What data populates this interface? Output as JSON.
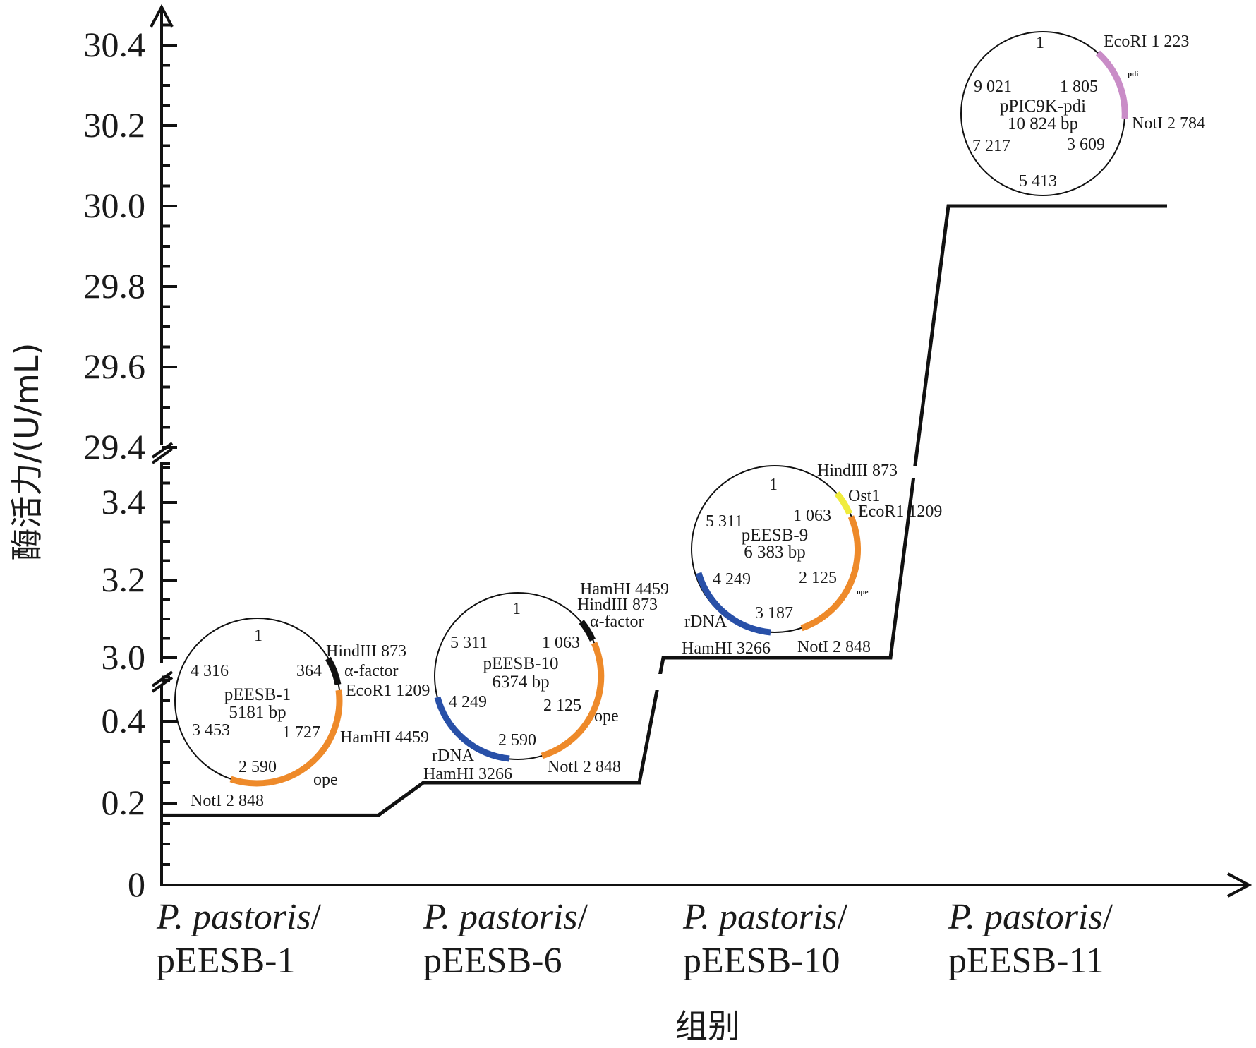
{
  "chart_data": {
    "type": "step-line",
    "title": "",
    "xlabel": "组别",
    "ylabel": "酶活力/(U/mL)",
    "categories": [
      {
        "italic": "P. pastoris",
        "slash": "/",
        "name": "pEESB-1"
      },
      {
        "italic": "P. pastoris",
        "slash": "/",
        "name": "pEESB-6"
      },
      {
        "italic": "P. pastoris",
        "slash": "/",
        "name": "pEESB-10"
      },
      {
        "italic": "P. pastoris",
        "slash": "/",
        "name": "pEESB-11"
      }
    ],
    "values": [
      0.17,
      0.25,
      3.0,
      30.0
    ],
    "y_axis": {
      "broken": true,
      "segments": [
        {
          "range": [
            0,
            0.5
          ],
          "ticks": [
            "0",
            "0.2",
            "0.4"
          ],
          "tick_values": [
            0,
            0.2,
            0.4
          ]
        },
        {
          "range": [
            2.95,
            3.5
          ],
          "ticks": [
            "3.0",
            "3.2",
            "3.4"
          ],
          "tick_values": [
            3.0,
            3.2,
            3.4
          ]
        },
        {
          "range": [
            29.35,
            30.5
          ],
          "ticks": [
            "29.4",
            "29.6",
            "29.8",
            "30.0",
            "30.2",
            "30.4"
          ],
          "tick_values": [
            29.4,
            29.6,
            29.8,
            30.0,
            30.2,
            30.4
          ]
        }
      ]
    },
    "grid": false,
    "plasmid_maps": [
      {
        "name": "pEESB-1",
        "size": "5181 bp",
        "positions": [
          "1",
          "364",
          "1 727",
          "2 590",
          "3 453",
          "4 316"
        ],
        "features": [
          "α-factor",
          "ope"
        ],
        "sites": [
          "HindIII 873",
          "EcoR1 1209",
          "HamHI 4459",
          "NotI 2 848"
        ],
        "colors": {
          "alpha_factor": "#111111",
          "ope": "#ee8a2a"
        }
      },
      {
        "name": "pEESB-10",
        "size": "6374 bp",
        "positions": [
          "1",
          "1 063",
          "2 125",
          "2 590",
          "4 249",
          "5 311"
        ],
        "features": [
          "α-factor",
          "ope",
          "rDNA"
        ],
        "sites": [
          "HamHI 4459",
          "HindIII 873",
          "HamHI 3266",
          "NotI 2 848"
        ],
        "colors": {
          "alpha_factor": "#111111",
          "ope": "#ee8a2a",
          "rDNA": "#2850a8"
        }
      },
      {
        "name": "pEESB-9",
        "size": "6 383 bp",
        "positions": [
          "1",
          "1 063",
          "2 125",
          "3 187",
          "4 249",
          "5 311"
        ],
        "features": [
          "Ost1",
          "ope",
          "rDNA"
        ],
        "sites": [
          "HindIII 873",
          "EcoR1 1209",
          "HamHI 3266",
          "NotI 2 848"
        ],
        "colors": {
          "Ost1": "#f0ec3c",
          "ope": "#ee8a2a",
          "rDNA": "#2850a8"
        }
      },
      {
        "name": "pPIC9K-pdi",
        "size": "10 824 bp",
        "positions": [
          "1",
          "1 805",
          "3 609",
          "5 413",
          "7 217",
          "9 021"
        ],
        "features": [
          "pdi"
        ],
        "sites": [
          "EcoRI 1 223",
          "NotI 2 784"
        ],
        "colors": {
          "pdi": "#c98cc7"
        }
      }
    ]
  }
}
